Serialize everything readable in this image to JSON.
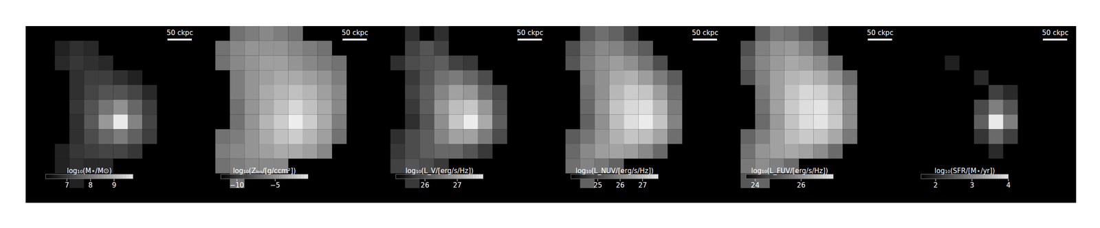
{
  "chart_data": [
    {
      "type": "heatmap",
      "tick_labels": false,
      "xlim": [
        -180,
        180
      ],
      "ylim": [
        -180,
        180
      ],
      "scalebar": {
        "label": "50 ckpc",
        "length": 50
      },
      "colorbar_label": "log₁₀(M⋆/M⊙)",
      "colorbar_range": [
        6.1,
        9.8
      ],
      "colorbar_ticks": [
        7,
        8,
        9
      ],
      "cells": [
        [
          null,
          null,
          null,
          null,
          null,
          null,
          null,
          null,
          null,
          null,
          null,
          null
        ],
        [
          null,
          null,
          6.6,
          6.8,
          6.7,
          null,
          null,
          null,
          null,
          null,
          null,
          null
        ],
        [
          null,
          null,
          6.7,
          6.9,
          6.8,
          6.7,
          null,
          null,
          null,
          null,
          null,
          null
        ],
        [
          null,
          null,
          null,
          6.8,
          7.0,
          7.0,
          6.8,
          6.6,
          null,
          null,
          null,
          null
        ],
        [
          null,
          null,
          null,
          6.8,
          7.1,
          7.3,
          7.3,
          7.1,
          6.7,
          null,
          null,
          null
        ],
        [
          null,
          null,
          null,
          6.9,
          7.3,
          7.8,
          8.2,
          7.6,
          7.0,
          null,
          null,
          null
        ],
        [
          null,
          null,
          null,
          6.8,
          7.4,
          8.3,
          9.5,
          8.0,
          7.1,
          null,
          null,
          null
        ],
        [
          null,
          null,
          null,
          6.8,
          7.2,
          7.6,
          7.9,
          7.5,
          7.0,
          null,
          null,
          null
        ],
        [
          null,
          null,
          6.6,
          6.9,
          7.0,
          7.1,
          7.1,
          6.9,
          null,
          null,
          null,
          null
        ],
        [
          null,
          null,
          6.6,
          6.8,
          6.7,
          6.7,
          null,
          null,
          null,
          null,
          null,
          null
        ],
        [
          null,
          null,
          null,
          6.6,
          null,
          null,
          null,
          null,
          null,
          null,
          null,
          null
        ],
        [
          null,
          null,
          null,
          null,
          null,
          null,
          null,
          null,
          null,
          null,
          null,
          null
        ]
      ]
    },
    {
      "type": "heatmap",
      "tick_labels": false,
      "xlim": [
        -180,
        180
      ],
      "ylim": [
        -180,
        180
      ],
      "scalebar": {
        "label": "50 ckpc",
        "length": 50
      },
      "colorbar_label": "log₁₀(Zₗₒₛ/[g/ccm²])",
      "colorbar_range": [
        -12.1,
        -0.7
      ],
      "colorbar_ticks": [
        -10,
        -5
      ],
      "cells": [
        [
          null,
          null,
          -7,
          -6.5,
          -6,
          -6.5,
          -7,
          null,
          null,
          null,
          null,
          null
        ],
        [
          null,
          -7,
          -6,
          -5.5,
          -5.5,
          -5.5,
          -6,
          -6.5,
          -7,
          null,
          null,
          null
        ],
        [
          null,
          -7,
          -6,
          -5.5,
          -5,
          -5,
          -5.5,
          -6,
          -6.5,
          -7,
          null,
          null
        ],
        [
          null,
          null,
          -6.5,
          -5.5,
          -5,
          -4.5,
          -4.5,
          -5,
          -5.5,
          -6.5,
          null,
          null
        ],
        [
          null,
          null,
          -6.5,
          -5.5,
          -4.5,
          -4,
          -3.5,
          -4,
          -5,
          -6,
          null,
          null
        ],
        [
          null,
          null,
          -7,
          -5.5,
          -4.5,
          -3.5,
          -2.5,
          -3.5,
          -4.5,
          -6,
          null,
          null
        ],
        [
          null,
          null,
          -7,
          -5.5,
          -4,
          -3,
          -1.5,
          -3,
          -4.5,
          -6.5,
          null,
          null
        ],
        [
          null,
          -7,
          -6.5,
          -5.5,
          -4.5,
          -3.5,
          -3,
          -4,
          -5,
          -7,
          null,
          null
        ],
        [
          null,
          -6.5,
          -6,
          -5.5,
          -5,
          -4.5,
          -4.5,
          -5,
          -6,
          null,
          null,
          null
        ],
        [
          null,
          -7,
          -6.5,
          -6,
          -6,
          -6,
          null,
          null,
          null,
          null,
          null,
          null
        ],
        [
          null,
          null,
          -7,
          null,
          null,
          null,
          null,
          null,
          null,
          null,
          null,
          null
        ],
        [
          null,
          null,
          null,
          null,
          null,
          null,
          null,
          null,
          null,
          null,
          null,
          null
        ]
      ]
    },
    {
      "type": "heatmap",
      "tick_labels": false,
      "xlim": [
        -180,
        180
      ],
      "ylim": [
        -180,
        180
      ],
      "scalebar": {
        "label": "50 ckpc",
        "length": 50
      },
      "colorbar_label": "log₁₀(L_V/[erg/s/Hz])",
      "colorbar_range": [
        25.1,
        27.8
      ],
      "colorbar_ticks": [
        26,
        27
      ],
      "cells": [
        [
          null,
          null,
          25.6,
          null,
          25.6,
          null,
          null,
          null,
          null,
          null,
          null,
          null
        ],
        [
          null,
          null,
          25.8,
          26.0,
          25.8,
          null,
          null,
          null,
          null,
          null,
          null,
          null
        ],
        [
          null,
          25.6,
          25.9,
          26.0,
          26.1,
          25.8,
          25.7,
          null,
          null,
          null,
          null,
          null
        ],
        [
          null,
          null,
          25.7,
          26.0,
          26.3,
          26.4,
          26.2,
          25.9,
          null,
          null,
          null,
          null
        ],
        [
          null,
          null,
          25.8,
          26.1,
          26.5,
          26.8,
          26.7,
          26.2,
          25.9,
          null,
          null,
          null
        ],
        [
          null,
          null,
          25.7,
          26.1,
          26.7,
          27.1,
          27.2,
          26.7,
          26.0,
          null,
          null,
          null
        ],
        [
          null,
          null,
          25.6,
          26.0,
          26.6,
          27.2,
          27.6,
          26.9,
          26.1,
          null,
          null,
          null
        ],
        [
          null,
          25.6,
          25.9,
          26.1,
          26.5,
          26.8,
          26.8,
          26.4,
          25.9,
          null,
          null,
          null
        ],
        [
          null,
          25.7,
          25.9,
          26.1,
          26.2,
          26.2,
          26.0,
          25.7,
          null,
          null,
          null,
          null
        ],
        [
          null,
          25.8,
          26.0,
          25.9,
          25.7,
          null,
          null,
          null,
          null,
          null,
          null,
          null
        ],
        [
          null,
          null,
          25.7,
          null,
          null,
          null,
          null,
          null,
          null,
          null,
          null,
          null
        ],
        [
          null,
          null,
          null,
          null,
          null,
          null,
          null,
          null,
          null,
          null,
          null,
          null
        ]
      ]
    },
    {
      "type": "heatmap",
      "tick_labels": false,
      "xlim": [
        -180,
        180
      ],
      "ylim": [
        -180,
        180
      ],
      "scalebar": {
        "label": "50 ckpc",
        "length": 50
      },
      "colorbar_label": "log₁₀(L_NUV/[erg/s/Hz])",
      "colorbar_range": [
        23.8,
        27.7
      ],
      "colorbar_ticks": [
        25,
        26,
        27
      ],
      "cells": [
        [
          null,
          null,
          25.2,
          25.5,
          25.3,
          24.8,
          null,
          null,
          null,
          null,
          null,
          null
        ],
        [
          null,
          25.0,
          25.6,
          25.9,
          25.8,
          25.5,
          25.2,
          null,
          null,
          null,
          null,
          null
        ],
        [
          null,
          25.1,
          25.7,
          26.0,
          26.2,
          26.0,
          25.6,
          25.0,
          null,
          null,
          null,
          null
        ],
        [
          null,
          null,
          25.6,
          26.0,
          26.4,
          26.5,
          26.2,
          25.7,
          25.2,
          null,
          null,
          null
        ],
        [
          null,
          null,
          25.5,
          26.0,
          26.6,
          26.9,
          26.8,
          26.2,
          25.5,
          null,
          null,
          null
        ],
        [
          null,
          null,
          25.4,
          26.1,
          26.8,
          27.1,
          27.2,
          26.6,
          25.7,
          null,
          null,
          null
        ],
        [
          null,
          null,
          25.3,
          26.0,
          26.7,
          27.2,
          27.4,
          26.8,
          25.8,
          null,
          null,
          null
        ],
        [
          null,
          25.2,
          25.6,
          26.1,
          26.5,
          26.8,
          26.7,
          26.3,
          25.5,
          null,
          null,
          null
        ],
        [
          null,
          25.4,
          25.9,
          26.2,
          26.3,
          26.2,
          25.9,
          25.4,
          null,
          null,
          null,
          null
        ],
        [
          null,
          25.5,
          25.8,
          25.6,
          25.3,
          null,
          null,
          null,
          null,
          null,
          null,
          null
        ],
        [
          null,
          null,
          25.3,
          null,
          null,
          null,
          null,
          null,
          null,
          null,
          null,
          null
        ],
        [
          null,
          null,
          null,
          null,
          null,
          null,
          null,
          null,
          null,
          null,
          null,
          null
        ]
      ]
    },
    {
      "type": "heatmap",
      "tick_labels": false,
      "xlim": [
        -180,
        180
      ],
      "ylim": [
        -180,
        180
      ],
      "scalebar": {
        "label": "50 ckpc",
        "length": 50
      },
      "colorbar_label": "log₁₀(L_FUV/[erg/s/Hz])",
      "colorbar_range": [
        23.6,
        27.4
      ],
      "colorbar_ticks": [
        24,
        26
      ],
      "cells": [
        [
          null,
          null,
          25.0,
          25.4,
          25.3,
          25.0,
          24.6,
          null,
          null,
          null,
          null,
          null
        ],
        [
          null,
          24.8,
          25.5,
          25.8,
          25.9,
          25.6,
          25.2,
          null,
          null,
          null,
          null,
          null
        ],
        [
          null,
          25.0,
          25.6,
          25.9,
          26.1,
          26.0,
          25.7,
          25.2,
          null,
          null,
          null,
          null
        ],
        [
          null,
          24.8,
          25.5,
          26.0,
          26.3,
          26.4,
          26.2,
          25.8,
          25.2,
          null,
          null,
          null
        ],
        [
          null,
          null,
          25.4,
          26.0,
          26.5,
          26.8,
          26.7,
          26.3,
          25.6,
          null,
          null,
          null
        ],
        [
          null,
          null,
          25.3,
          26.0,
          26.6,
          26.9,
          27.0,
          26.5,
          25.7,
          null,
          null,
          null
        ],
        [
          null,
          null,
          25.2,
          25.9,
          26.5,
          26.9,
          27.0,
          26.6,
          25.7,
          null,
          null,
          null
        ],
        [
          null,
          25.1,
          25.5,
          26.0,
          26.4,
          26.6,
          26.5,
          26.1,
          25.4,
          null,
          null,
          null
        ],
        [
          null,
          25.3,
          25.8,
          26.0,
          26.1,
          26.0,
          25.7,
          25.2,
          null,
          null,
          null,
          null
        ],
        [
          null,
          25.4,
          25.7,
          25.5,
          25.2,
          null,
          null,
          null,
          null,
          null,
          null,
          null
        ],
        [
          null,
          24.9,
          25.1,
          null,
          null,
          null,
          null,
          null,
          null,
          null,
          null,
          null
        ],
        [
          null,
          null,
          null,
          null,
          null,
          null,
          null,
          null,
          null,
          null,
          null,
          null
        ]
      ]
    },
    {
      "type": "heatmap",
      "tick_labels": false,
      "xlim": [
        -180,
        180
      ],
      "ylim": [
        -180,
        180
      ],
      "scalebar": {
        "label": "50 ckpc",
        "length": 50
      },
      "colorbar_label": "log₁₀(SFR/[M⋆/yr])",
      "colorbar_range": [
        1.6,
        4.0
      ],
      "colorbar_ticks": [
        2,
        3,
        4
      ],
      "cells": [
        [
          null,
          null,
          null,
          null,
          null,
          null,
          null,
          null,
          null,
          null,
          null,
          null
        ],
        [
          null,
          null,
          null,
          null,
          null,
          null,
          null,
          null,
          null,
          null,
          null,
          null
        ],
        [
          null,
          null,
          null,
          1.9,
          null,
          null,
          null,
          null,
          null,
          null,
          null,
          null
        ],
        [
          null,
          null,
          null,
          null,
          null,
          2.0,
          null,
          null,
          null,
          null,
          null,
          null
        ],
        [
          null,
          null,
          null,
          null,
          null,
          null,
          2.2,
          2.0,
          null,
          null,
          null,
          null
        ],
        [
          null,
          null,
          null,
          null,
          null,
          2.3,
          2.8,
          2.4,
          null,
          null,
          null,
          null
        ],
        [
          null,
          null,
          null,
          null,
          null,
          2.5,
          3.8,
          2.8,
          null,
          null,
          null,
          null
        ],
        [
          null,
          null,
          null,
          null,
          null,
          2.1,
          2.6,
          2.2,
          null,
          null,
          null,
          null
        ],
        [
          null,
          null,
          null,
          null,
          null,
          null,
          2.0,
          null,
          null,
          null,
          null,
          null
        ],
        [
          null,
          null,
          null,
          null,
          null,
          null,
          null,
          null,
          null,
          null,
          null,
          null
        ],
        [
          null,
          null,
          null,
          null,
          null,
          null,
          null,
          null,
          null,
          null,
          null,
          null
        ],
        [
          null,
          null,
          null,
          null,
          null,
          null,
          null,
          null,
          null,
          null,
          null,
          null
        ]
      ]
    }
  ]
}
